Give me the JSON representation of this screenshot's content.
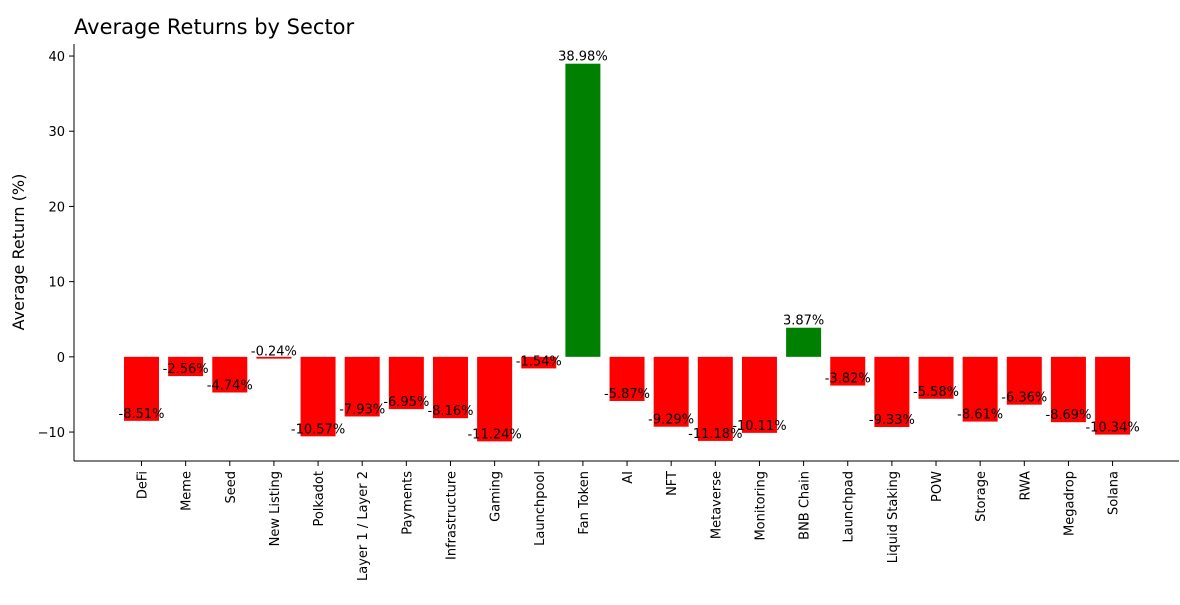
{
  "chart_data": {
    "type": "bar",
    "title": "Average Returns by Sector",
    "xlabel": "",
    "ylabel": "Average Return (%)",
    "ylim": [
      -13.85,
      41.6
    ],
    "yticks": [
      -10,
      0,
      10,
      20,
      30,
      40
    ],
    "grid": false,
    "categories": [
      "DeFi",
      "Meme",
      "Seed",
      "New Listing",
      "Polkadot",
      "Layer 1 / Layer 2",
      "Payments",
      "Infrastructure",
      "Gaming",
      "Launchpool",
      "Fan Token",
      "AI",
      "NFT",
      "Metaverse",
      "Monitoring",
      "BNB Chain",
      "Launchpad",
      "Liquid Staking",
      "POW",
      "Storage",
      "RWA",
      "Megadrop",
      "Solana"
    ],
    "values": [
      -8.51,
      -2.56,
      -4.74,
      -0.24,
      -10.57,
      -7.93,
      -6.95,
      -8.16,
      -11.24,
      -1.54,
      38.98,
      -5.87,
      -9.29,
      -11.18,
      -10.11,
      3.87,
      -3.82,
      -9.33,
      -5.58,
      -8.61,
      -6.36,
      -8.69,
      -10.34
    ],
    "labels": [
      "-8.51%",
      "-2.56%",
      "-4.74%",
      "-0.24%",
      "-10.57%",
      "-7.93%",
      "-6.95%",
      "-8.16%",
      "-11.24%",
      "-1.54%",
      "38.98%",
      "-5.87%",
      "-9.29%",
      "-11.18%",
      "-10.11%",
      "3.87%",
      "-3.82%",
      "-9.33%",
      "-5.58%",
      "-8.61%",
      "-6.36%",
      "-8.69%",
      "-10.34%"
    ],
    "colors": {
      "positive": "#008000",
      "negative": "#ff0000"
    }
  }
}
